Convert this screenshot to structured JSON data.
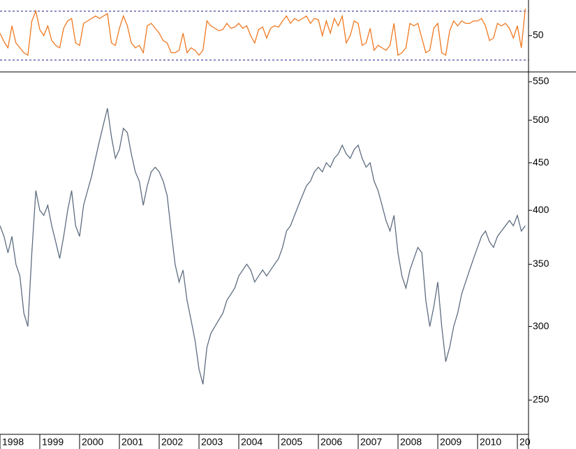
{
  "chart_data": [
    {
      "type": "line",
      "color": "#f07820",
      "ylim": [
        20.3,
        79.1
      ],
      "yticks": [
        50
      ],
      "hlines": [
        30,
        70
      ],
      "xlim": [
        1998,
        2011.28
      ],
      "x": [
        1998.0,
        1998.1,
        1998.2,
        1998.3,
        1998.4,
        1998.5,
        1998.6,
        1998.7,
        1998.8,
        1998.9,
        1999.0,
        1999.1,
        1999.2,
        1999.3,
        1999.4,
        1999.5,
        1999.6,
        1999.7,
        1999.8,
        1999.9,
        2000.0,
        2000.1,
        2000.2,
        2000.3,
        2000.4,
        2000.5,
        2000.6,
        2000.7,
        2000.8,
        2000.9,
        2001.0,
        2001.1,
        2001.2,
        2001.3,
        2001.4,
        2001.5,
        2001.6,
        2001.7,
        2001.8,
        2001.9,
        2002.0,
        2002.1,
        2002.2,
        2002.3,
        2002.4,
        2002.5,
        2002.6,
        2002.7,
        2002.8,
        2002.9,
        2003.0,
        2003.1,
        2003.2,
        2003.3,
        2003.4,
        2003.5,
        2003.6,
        2003.7,
        2003.8,
        2003.9,
        2004.0,
        2004.1,
        2004.2,
        2004.3,
        2004.4,
        2004.5,
        2004.6,
        2004.7,
        2004.8,
        2004.9,
        2005.0,
        2005.1,
        2005.2,
        2005.3,
        2005.4,
        2005.5,
        2005.6,
        2005.7,
        2005.8,
        2005.9,
        2006.0,
        2006.1,
        2006.2,
        2006.3,
        2006.4,
        2006.5,
        2006.6,
        2006.7,
        2006.8,
        2006.9,
        2007.0,
        2007.1,
        2007.2,
        2007.3,
        2007.4,
        2007.5,
        2007.6,
        2007.7,
        2007.8,
        2007.9,
        2008.0,
        2008.1,
        2008.2,
        2008.3,
        2008.4,
        2008.5,
        2008.6,
        2008.7,
        2008.8,
        2008.9,
        2009.0,
        2009.1,
        2009.2,
        2009.3,
        2009.4,
        2009.5,
        2009.6,
        2009.7,
        2009.8,
        2009.9,
        2010.0,
        2010.1,
        2010.2,
        2010.3,
        2010.4,
        2010.5,
        2010.6,
        2010.7,
        2010.8,
        2010.9,
        2011.0,
        2011.1,
        2011.2
      ],
      "values": [
        52,
        45,
        40,
        58,
        44,
        40,
        36,
        34,
        62,
        70,
        55,
        50,
        58,
        46,
        42,
        40,
        56,
        62,
        64,
        44,
        42,
        60,
        62,
        64,
        66,
        64,
        66,
        68,
        44,
        42,
        56,
        66,
        58,
        44,
        40,
        42,
        36,
        58,
        60,
        56,
        52,
        46,
        44,
        36,
        36,
        38,
        52,
        36,
        40,
        38,
        34,
        38,
        62,
        58,
        56,
        54,
        55,
        60,
        56,
        57,
        60,
        56,
        58,
        50,
        44,
        55,
        57,
        48,
        56,
        58,
        57,
        62,
        66,
        60,
        64,
        62,
        64,
        66,
        60,
        64,
        63,
        50,
        62,
        52,
        64,
        58,
        66,
        44,
        50,
        62,
        60,
        42,
        44,
        56,
        38,
        42,
        40,
        38,
        42,
        60,
        34,
        36,
        40,
        60,
        58,
        60,
        48,
        36,
        38,
        56,
        60,
        36,
        34,
        54,
        62,
        58,
        62,
        60,
        60,
        62,
        62,
        64,
        58,
        46,
        48,
        60,
        58,
        60,
        56,
        48,
        58,
        40,
        72
      ]
    },
    {
      "type": "line",
      "log_scale": true,
      "color": "#5e6d80",
      "ylim": [
        229.7,
        563.5
      ],
      "yticks": [
        250,
        300,
        350,
        400,
        450,
        500,
        550
      ],
      "xlim": [
        1998,
        2011.28
      ],
      "xticks": [
        1998,
        1999,
        2000,
        2001,
        2002,
        2003,
        2004,
        2005,
        2006,
        2007,
        2008,
        2009,
        2010,
        {
          "value": 2011,
          "label": "20"
        }
      ],
      "x": [
        1998.0,
        1998.1,
        1998.2,
        1998.3,
        1998.4,
        1998.5,
        1998.6,
        1998.7,
        1998.8,
        1998.9,
        1999.0,
        1999.1,
        1999.2,
        1999.3,
        1999.4,
        1999.5,
        1999.6,
        1999.7,
        1999.8,
        1999.9,
        2000.0,
        2000.1,
        2000.2,
        2000.3,
        2000.4,
        2000.5,
        2000.6,
        2000.7,
        2000.8,
        2000.9,
        2001.0,
        2001.1,
        2001.2,
        2001.3,
        2001.4,
        2001.5,
        2001.6,
        2001.7,
        2001.8,
        2001.9,
        2002.0,
        2002.1,
        2002.2,
        2002.3,
        2002.4,
        2002.5,
        2002.6,
        2002.7,
        2002.8,
        2002.9,
        2003.0,
        2003.1,
        2003.2,
        2003.3,
        2003.4,
        2003.5,
        2003.6,
        2003.7,
        2003.8,
        2003.9,
        2004.0,
        2004.1,
        2004.2,
        2004.3,
        2004.4,
        2004.5,
        2004.6,
        2004.7,
        2004.8,
        2004.9,
        2005.0,
        2005.1,
        2005.2,
        2005.3,
        2005.4,
        2005.5,
        2005.6,
        2005.7,
        2005.8,
        2005.9,
        2006.0,
        2006.1,
        2006.2,
        2006.3,
        2006.4,
        2006.5,
        2006.6,
        2006.7,
        2006.8,
        2006.9,
        2007.0,
        2007.1,
        2007.2,
        2007.3,
        2007.4,
        2007.5,
        2007.6,
        2007.7,
        2007.8,
        2007.9,
        2008.0,
        2008.1,
        2008.2,
        2008.3,
        2008.4,
        2008.5,
        2008.6,
        2008.7,
        2008.8,
        2008.9,
        2009.0,
        2009.1,
        2009.2,
        2009.3,
        2009.4,
        2009.5,
        2009.6,
        2009.7,
        2009.8,
        2009.9,
        2010.0,
        2010.1,
        2010.2,
        2010.3,
        2010.4,
        2010.5,
        2010.6,
        2010.7,
        2010.8,
        2010.9,
        2011.0,
        2011.1,
        2011.2
      ],
      "values": [
        385,
        375,
        360,
        375,
        350,
        340,
        310,
        300,
        360,
        420,
        400,
        395,
        405,
        385,
        370,
        355,
        375,
        400,
        420,
        385,
        375,
        405,
        420,
        435,
        455,
        475,
        495,
        515,
        480,
        455,
        465,
        490,
        485,
        460,
        440,
        430,
        405,
        425,
        440,
        445,
        440,
        430,
        415,
        380,
        350,
        335,
        345,
        320,
        305,
        290,
        270,
        260,
        285,
        295,
        300,
        305,
        310,
        320,
        325,
        330,
        340,
        345,
        350,
        345,
        335,
        340,
        345,
        340,
        345,
        350,
        355,
        365,
        380,
        385,
        395,
        405,
        415,
        425,
        430,
        440,
        445,
        440,
        450,
        445,
        455,
        460,
        470,
        460,
        455,
        465,
        470,
        455,
        445,
        450,
        430,
        420,
        405,
        390,
        380,
        395,
        360,
        340,
        330,
        345,
        355,
        365,
        360,
        320,
        300,
        315,
        335,
        300,
        275,
        285,
        300,
        310,
        325,
        335,
        345,
        355,
        365,
        375,
        380,
        370,
        365,
        375,
        380,
        385,
        390,
        385,
        395,
        380,
        385
      ]
    }
  ]
}
